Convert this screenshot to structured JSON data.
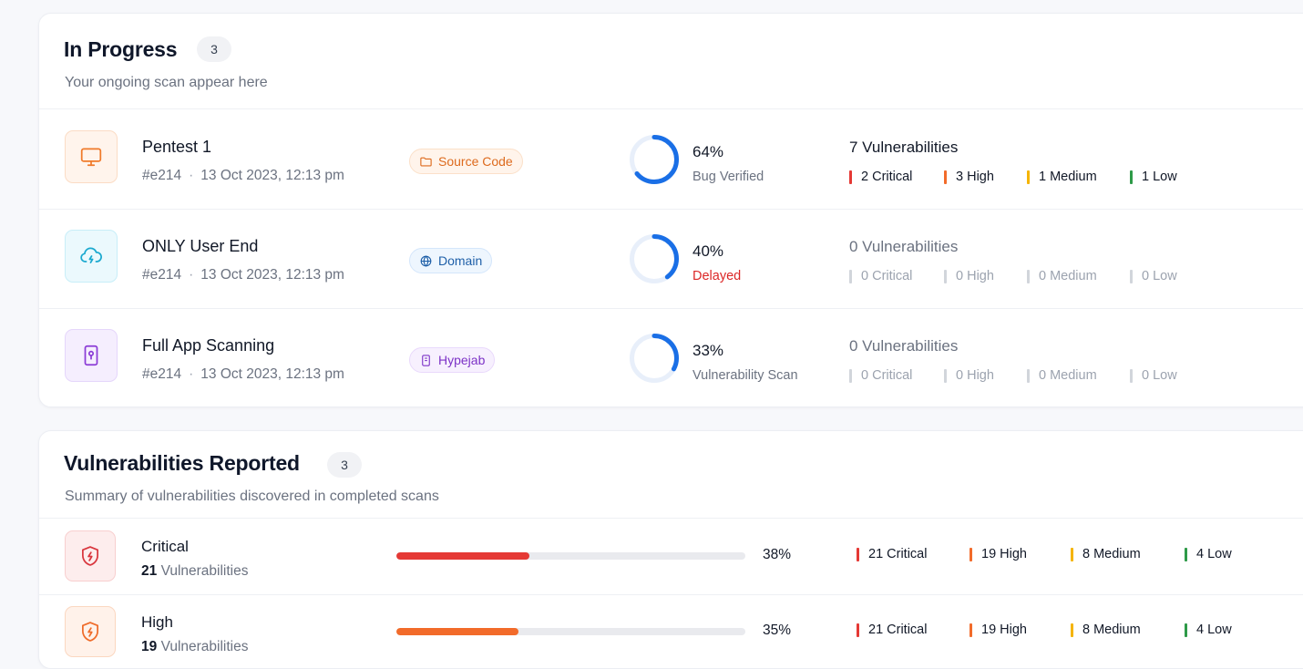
{
  "colors": {
    "critical": "#e53935",
    "high": "#f26b2a",
    "medium": "#f5b400",
    "low": "#2e9a48",
    "muted_bar": "#d1d5db",
    "ring_track": "#e8effa",
    "ring_fill": "#1a6fe6"
  },
  "in_progress": {
    "title": "In Progress",
    "count": "3",
    "subtitle": "Your ongoing scan appear here",
    "scans": [
      {
        "icon": "monitor-icon",
        "name": "Pentest 1",
        "id": "#e214",
        "date": "13 Oct 2023, 12:13 pm",
        "tag": "Source Code",
        "tag_icon": "folder-icon",
        "progress": 0.64,
        "progress_label": "64%",
        "status": "Bug Verified",
        "vuln_total": "7 Vulnerabilities",
        "sev": {
          "critical": "2 Critical",
          "high": "3 High",
          "medium": "1 Medium",
          "low": "1 Low"
        }
      },
      {
        "icon": "cloud-lightning-icon",
        "name": "ONLY User End",
        "id": "#e214",
        "date": "13 Oct 2023, 12:13 pm",
        "tag": "Domain",
        "tag_icon": "globe-icon",
        "progress": 0.4,
        "progress_label": "40%",
        "status": "Delayed",
        "vuln_total": "0 Vulnerabilities",
        "sev": {
          "critical": "0 Critical",
          "high": "0 High",
          "medium": "0 Medium",
          "low": "0 Low"
        }
      },
      {
        "icon": "mobile-lock-icon",
        "name": "Full App Scanning",
        "id": "#e214",
        "date": "13 Oct 2023, 12:13 pm",
        "tag": "Hypejab",
        "tag_icon": "app-icon",
        "progress": 0.33,
        "progress_label": "33%",
        "status": "Vulnerability Scan",
        "vuln_total": "0 Vulnerabilities",
        "sev": {
          "critical": "0 Critical",
          "high": "0 High",
          "medium": "0 Medium",
          "low": "0 Low"
        }
      }
    ]
  },
  "reported": {
    "title": "Vulnerabilities Reported",
    "count": "3",
    "subtitle": "Summary of vulnerabilities discovered in completed scans",
    "rows": [
      {
        "icon": "shield-bolt-icon",
        "name": "Critical",
        "count": "21",
        "count_suffix": "Vulnerabilities",
        "progress": 0.38,
        "pct": "38%",
        "sev": {
          "critical": "21 Critical",
          "high": "19 High",
          "medium": "8 Medium",
          "low": "4 Low"
        }
      },
      {
        "icon": "shield-bolt-icon",
        "name": "High",
        "count": "19",
        "count_suffix": "Vulnerabilities",
        "progress": 0.35,
        "pct": "35%",
        "sev": {
          "critical": "21 Critical",
          "high": "19 High",
          "medium": "8 Medium",
          "low": "4 Low"
        }
      }
    ]
  }
}
